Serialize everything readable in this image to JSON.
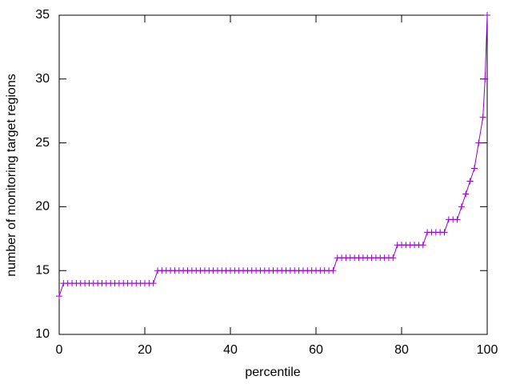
{
  "chart_data": {
    "type": "line",
    "xlabel": "percentile",
    "ylabel": "number of monitoring target regions",
    "x": [
      0,
      1,
      2,
      3,
      4,
      5,
      6,
      7,
      8,
      9,
      10,
      11,
      12,
      13,
      14,
      15,
      16,
      17,
      18,
      19,
      20,
      21,
      22,
      23,
      24,
      25,
      26,
      27,
      28,
      29,
      30,
      31,
      32,
      33,
      34,
      35,
      36,
      37,
      38,
      39,
      40,
      41,
      42,
      43,
      44,
      45,
      46,
      47,
      48,
      49,
      50,
      51,
      52,
      53,
      54,
      55,
      56,
      57,
      58,
      59,
      60,
      61,
      62,
      63,
      64,
      65,
      66,
      67,
      68,
      69,
      70,
      71,
      72,
      73,
      74,
      75,
      76,
      77,
      78,
      79,
      80,
      81,
      82,
      83,
      84,
      85,
      86,
      87,
      88,
      89,
      90,
      91,
      92,
      93,
      94,
      95,
      96,
      97,
      98,
      99,
      99.5,
      100
    ],
    "series": [
      {
        "color": "#9400d3",
        "values": [
          13,
          14,
          14,
          14,
          14,
          14,
          14,
          14,
          14,
          14,
          14,
          14,
          14,
          14,
          14,
          14,
          14,
          14,
          14,
          14,
          14,
          14,
          14,
          15,
          15,
          15,
          15,
          15,
          15,
          15,
          15,
          15,
          15,
          15,
          15,
          15,
          15,
          15,
          15,
          15,
          15,
          15,
          15,
          15,
          15,
          15,
          15,
          15,
          15,
          15,
          15,
          15,
          15,
          15,
          15,
          15,
          15,
          15,
          15,
          15,
          15,
          15,
          15,
          15,
          15,
          16,
          16,
          16,
          16,
          16,
          16,
          16,
          16,
          16,
          16,
          16,
          16,
          16,
          16,
          17,
          17,
          17,
          17,
          17,
          17,
          17,
          18,
          18,
          18,
          18,
          18,
          19,
          19,
          19,
          20,
          21,
          22,
          23,
          25,
          27,
          30,
          35
        ]
      }
    ],
    "xlim": [
      0,
      100
    ],
    "xticks": [
      0,
      20,
      40,
      60,
      80,
      100
    ],
    "ylim": [
      10,
      35
    ],
    "yticks": [
      10,
      15,
      20,
      25,
      30,
      35
    ]
  }
}
